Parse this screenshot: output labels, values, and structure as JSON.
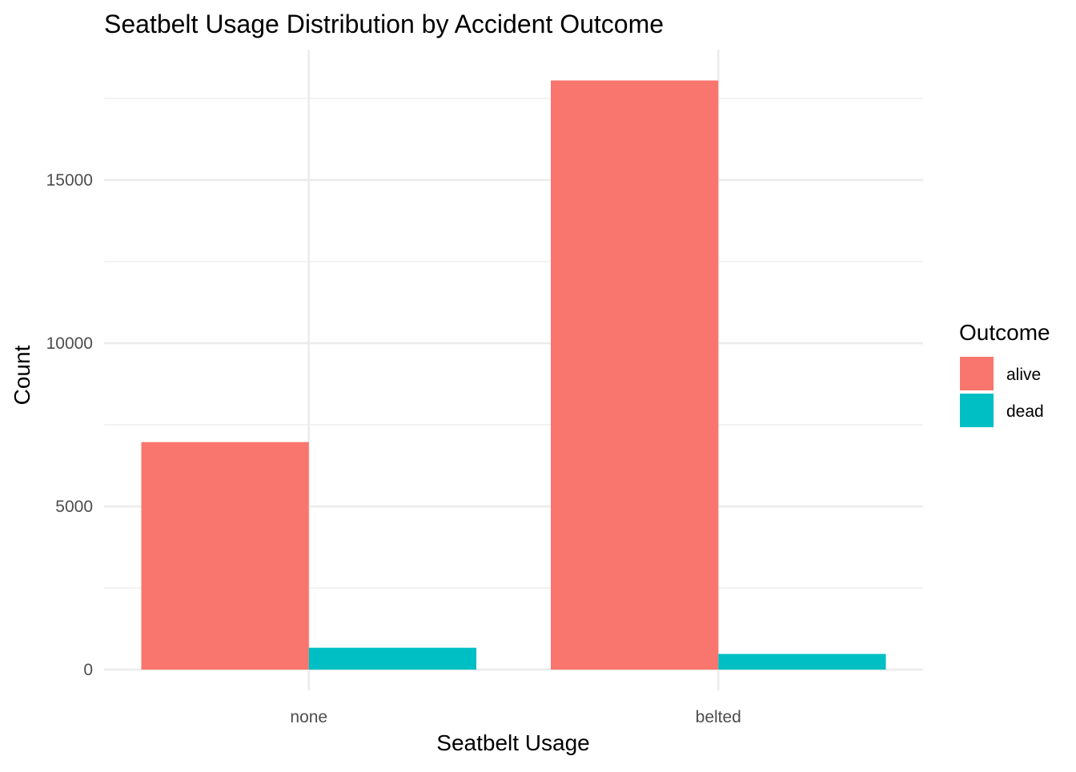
{
  "chart_data": {
    "type": "bar",
    "title": "Seatbelt Usage Distribution by Accident Outcome",
    "xlabel": "Seatbelt Usage",
    "ylabel": "Count",
    "categories": [
      "none",
      "belted"
    ],
    "series": [
      {
        "name": "alive",
        "color": "#F8766D",
        "values": [
          6970,
          18050
        ]
      },
      {
        "name": "dead",
        "color": "#00BFC4",
        "values": [
          670,
          480
        ]
      }
    ],
    "ylim": [
      0,
      18000
    ],
    "yticks": [
      0,
      5000,
      10000,
      15000
    ],
    "ytick_labels": [
      "0",
      "5000",
      "10000",
      "15000"
    ],
    "legend": {
      "title": "Outcome",
      "position": "right"
    },
    "grid": true
  }
}
